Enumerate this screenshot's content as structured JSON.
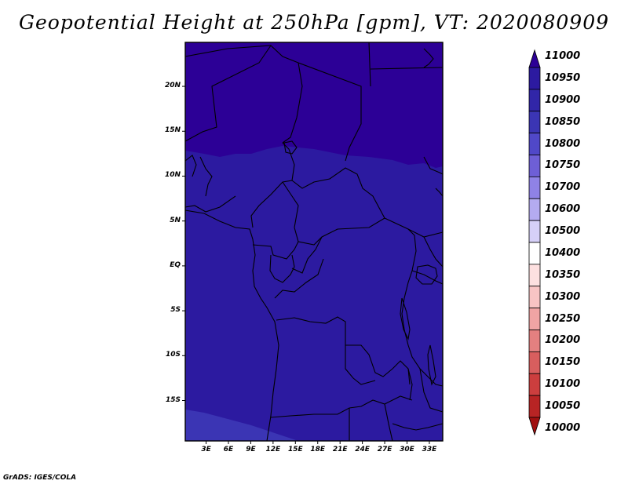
{
  "title": "Geopotential Height at 250hPa [gpm], VT: 2020080909",
  "credit": "GrADS: IGES/COLA",
  "lat_labels": [
    "20N",
    "15N",
    "10N",
    "5N",
    "EQ",
    "5S",
    "10S",
    "15S"
  ],
  "lat_values": [
    20,
    15,
    10,
    5,
    0,
    -5,
    -10,
    -15
  ],
  "lon_labels": [
    "3E",
    "6E",
    "9E",
    "12E",
    "15E",
    "18E",
    "21E",
    "24E",
    "27E",
    "30E",
    "33E"
  ],
  "lon_values": [
    3,
    6,
    9,
    12,
    15,
    18,
    21,
    24,
    27,
    30,
    33
  ],
  "colorbar": {
    "levels": [
      "11000",
      "10950",
      "10900",
      "10850",
      "10800",
      "10750",
      "10700",
      "10600",
      "10500",
      "10400",
      "10350",
      "10300",
      "10250",
      "10200",
      "10150",
      "10100",
      "10050",
      "10000"
    ],
    "colors": [
      "#2c0096",
      "#2c1aa0",
      "#3126a8",
      "#3b35b4",
      "#5048c8",
      "#6e5fd6",
      "#8f82e6",
      "#b4abf0",
      "#d6d0f8",
      "#ffffff",
      "#fde0e0",
      "#f8c4c4",
      "#f0a4a4",
      "#e48080",
      "#d85e5e",
      "#cc3e3e",
      "#b82424",
      "#a01010"
    ]
  },
  "map": {
    "fields": [
      {
        "level": "10950-11000",
        "color": "#2c0096"
      },
      {
        "level": "10900-10950",
        "color": "#2c1aa0"
      },
      {
        "level": "10850-10900",
        "color": "#3b35b4"
      }
    ]
  }
}
